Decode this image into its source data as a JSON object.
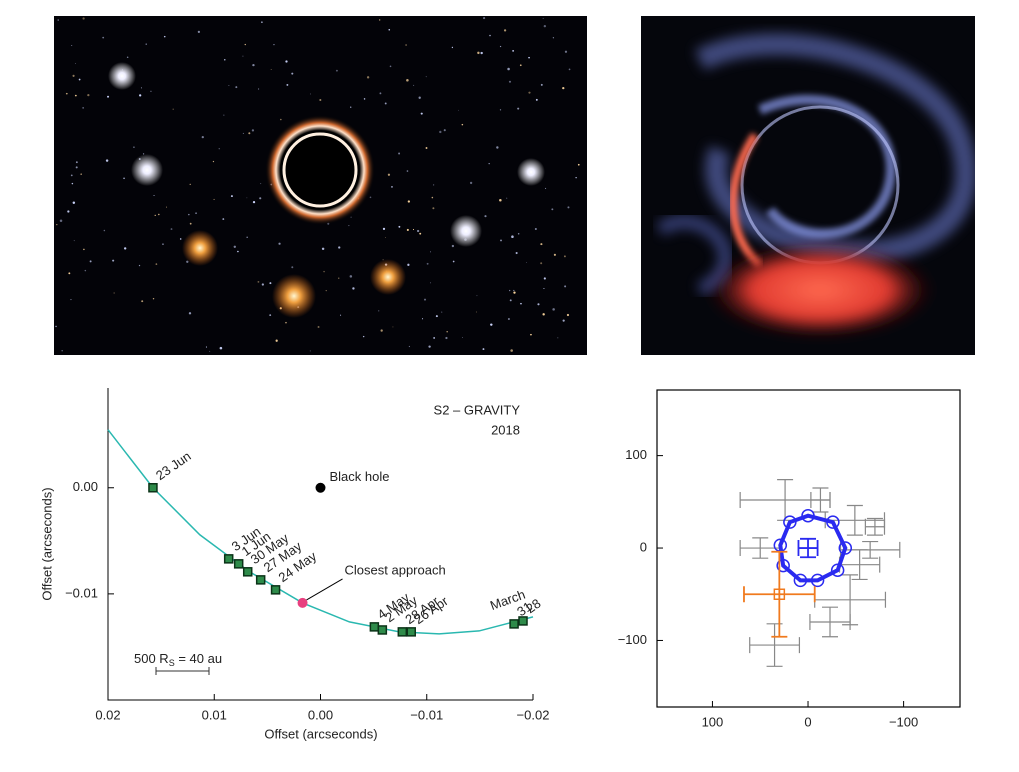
{
  "chart_data": [
    {
      "type": "line",
      "title": "S2 – GRAVITY",
      "subtitle": "2018",
      "x_label": "Offset (arcseconds)",
      "y_label": "Offset (arcseconds)",
      "xlim": [
        0.02,
        -0.02
      ],
      "ylim": [
        -0.02,
        0.0094
      ],
      "xticks": [
        0.02,
        0.01,
        {
          "value": 0,
          "label": "0.00"
        },
        {
          "value": -0.01,
          "label": "−0.01"
        },
        {
          "value": -0.02,
          "label": "−0.02"
        }
      ],
      "yticks": [
        {
          "value": 0,
          "label": "0.00"
        },
        {
          "value": -0.01,
          "label": "−0.01"
        }
      ],
      "series": [
        {
          "mode": "line",
          "color": "#2ab8b0",
          "x": [
            0.02,
            0.01577,
            0.01136,
            0.00667,
            0.00169,
            -0.00272,
            -0.00742,
            -0.01117,
            -0.01493,
            -0.02
          ],
          "values": [
            0.00547,
            0,
            -0.00443,
            -0.00792,
            -0.01085,
            -0.01264,
            -0.01358,
            -0.01377,
            -0.01349,
            -0.01217
          ]
        },
        {
          "mode": "markers",
          "color": "#2e8b4a",
          "x": [
            0.01577,
            0.00864,
            0.0077,
            0.00685,
            0.00563,
            0.00423,
            -0.00507,
            -0.00582,
            -0.0077,
            -0.00854,
            -0.01822,
            -0.01906
          ],
          "values": [
            0,
            -0.0067,
            -0.00717,
            -0.00792,
            -0.00868,
            -0.00962,
            -0.01311,
            -0.0134,
            -0.01358,
            -0.01358,
            -0.01283,
            -0.01255
          ],
          "labels": [
            "23 Jun",
            "3 Jun",
            "1 Jun",
            "30 May",
            "27 May",
            "24 May",
            "4 May",
            "2 May",
            "28 Apr",
            "26 Apr",
            "31",
            "28"
          ]
        }
      ],
      "month_label": "March",
      "annotations": [
        {
          "text": "Black hole",
          "x": 0,
          "y": 0,
          "color": "#000000"
        },
        {
          "text": "Closest approach",
          "x": 0.00169,
          "y": -0.01085,
          "color": "#e8407f"
        }
      ],
      "scale_bar": {
        "number": "500 R",
        "subscript": "S",
        "rest": " = 40 au"
      }
    },
    {
      "type": "scatter",
      "xlim": [
        158,
        -159
      ],
      "ylim": [
        -172,
        171
      ],
      "xticks": [
        100,
        0,
        {
          "value": -100,
          "label": "−100"
        }
      ],
      "yticks": [
        100,
        0,
        {
          "value": -100,
          "label": "−100"
        }
      ],
      "series": [
        {
          "mode": "errorbar",
          "color": "#888888",
          "x": [
            24,
            -13,
            -49,
            -70,
            50,
            -65,
            -54,
            -44,
            -23,
            35
          ],
          "values": [
            52,
            52,
            30,
            23,
            0,
            -2,
            -18,
            -56,
            -80,
            -105
          ],
          "xerr": [
            47,
            10,
            31,
            10,
            21,
            31,
            21,
            37,
            21,
            26
          ],
          "yerr": [
            22,
            13,
            16,
            9,
            11,
            9,
            16,
            27,
            16,
            23
          ]
        },
        {
          "mode": "ring",
          "color": "#2a2af0",
          "x": [
            0,
            -26,
            -39,
            -31,
            -10,
            8,
            26,
            29,
            19
          ],
          "values": [
            35,
            28,
            0,
            -24,
            -35,
            -35,
            -19,
            3,
            28
          ]
        },
        {
          "mode": "square",
          "color": "#f07a1e",
          "x": [
            30
          ],
          "values": [
            -50
          ],
          "xerr": [
            37
          ],
          "yerr": [
            46
          ]
        },
        {
          "mode": "cross",
          "color": "#2a2af0",
          "x": [
            0
          ],
          "values": [
            0
          ],
          "xerr": [
            10
          ],
          "yerr": [
            10
          ]
        }
      ]
    }
  ]
}
